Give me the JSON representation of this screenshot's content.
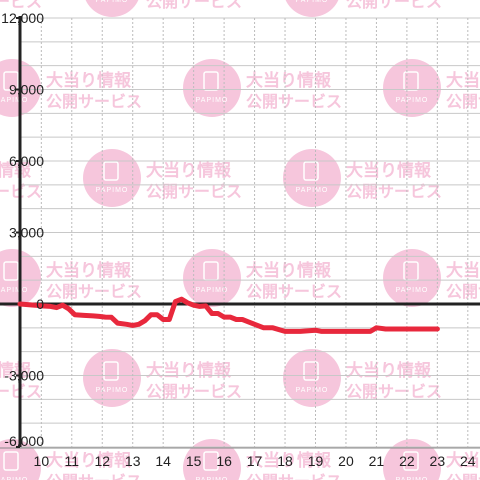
{
  "chart_data": {
    "type": "line",
    "title": "",
    "xlabel": "",
    "ylabel": "",
    "xlim": [
      9.3,
      24.4
    ],
    "ylim": [
      -6000,
      12000
    ],
    "x_ticks": [
      10,
      11,
      12,
      13,
      14,
      15,
      16,
      17,
      18,
      19,
      20,
      21,
      22,
      23,
      24
    ],
    "x_tick_labels": [
      "10",
      "11",
      "12",
      "13",
      "14",
      "15",
      "16",
      "17",
      "18",
      "19",
      "20",
      "21",
      "22",
      "23",
      "24"
    ],
    "y_ticks": [
      12000,
      9000,
      6000,
      3000,
      0,
      -3000,
      -6000
    ],
    "y_tick_labels": [
      "12,000",
      "9,000",
      "6,000",
      "3,000",
      "0",
      "-3,000",
      "-6,000"
    ],
    "grid": true,
    "legend": "none",
    "series": [
      {
        "color": "#e8283c",
        "x": [
          9.3,
          9.8,
          10.0,
          10.3,
          10.5,
          10.7,
          10.9,
          11.1,
          11.4,
          11.7,
          11.9,
          12.1,
          12.3,
          12.5,
          12.8,
          13.0,
          13.2,
          13.4,
          13.6,
          13.8,
          14.0,
          14.2,
          14.4,
          14.6,
          14.8,
          15.0,
          15.2,
          15.4,
          15.6,
          15.8,
          16.0,
          16.2,
          16.4,
          16.6,
          16.8,
          17.0,
          17.3,
          17.6,
          18.0,
          18.5,
          19.0,
          19.2,
          19.5,
          20.0,
          20.4,
          20.8,
          21.0,
          21.3,
          21.6,
          22.0,
          22.5,
          23.0
        ],
        "y": [
          0,
          -50,
          -80,
          -100,
          -150,
          -50,
          -200,
          -450,
          -480,
          -500,
          -520,
          -550,
          -560,
          -800,
          -850,
          -900,
          -850,
          -700,
          -450,
          -450,
          -650,
          -650,
          100,
          200,
          50,
          -50,
          -100,
          -80,
          -400,
          -400,
          -550,
          -550,
          -650,
          -650,
          -750,
          -850,
          -1000,
          -1000,
          -1150,
          -1150,
          -1100,
          -1150,
          -1150,
          -1150,
          -1150,
          -1150,
          -1000,
          -1050,
          -1050,
          -1050,
          -1050,
          -1050
        ]
      }
    ]
  },
  "watermark": {
    "line1": "大当り情報",
    "line2": "公開サービス",
    "badge_text": "PAPIMO",
    "color": "#f6c6dc"
  }
}
